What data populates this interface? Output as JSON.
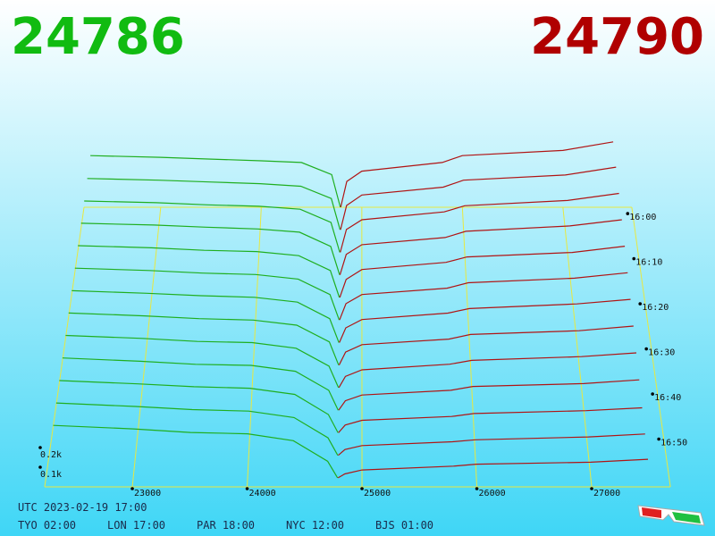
{
  "chart_data": {
    "type": "depth3d",
    "best_bid": "24786",
    "best_ask": "24790",
    "bid_color": "#1fae1f",
    "ask_color": "#b01414",
    "xlim": [
      22237,
      27685
    ],
    "xticks": [
      23000,
      24000,
      25000,
      26000,
      27000
    ],
    "zlim": [
      958,
      1020
    ],
    "zticks": [
      {
        "value": 960,
        "label": "16:00"
      },
      {
        "value": 970,
        "label": "16:10"
      },
      {
        "value": 980,
        "label": "16:20"
      },
      {
        "value": 990,
        "label": "16:30"
      },
      {
        "value": 1000,
        "label": "16:40"
      },
      {
        "value": 1010,
        "label": "16:50"
      }
    ],
    "vticks": [
      {
        "value": 100,
        "label": "0.1k"
      },
      {
        "value": 200,
        "label": "0.2k"
      }
    ],
    "bid_prices": [
      22300,
      23000,
      23500,
      24000,
      24400,
      24700,
      24786
    ],
    "ask_prices": [
      24790,
      24850,
      25000,
      25800,
      26000,
      27000,
      27500
    ],
    "rows": [
      {
        "time": 958,
        "bids": [
          300,
          290,
          280,
          270,
          260,
          190,
          0
        ],
        "asks": [
          0,
          150,
          210,
          260,
          300,
          330,
          380
        ]
      },
      {
        "time": 963,
        "bids": [
          295,
          285,
          275,
          265,
          250,
          180,
          0
        ],
        "asks": [
          0,
          140,
          200,
          245,
          285,
          315,
          360
        ]
      },
      {
        "time": 968,
        "bids": [
          292,
          282,
          270,
          262,
          245,
          170,
          0
        ],
        "asks": [
          0,
          130,
          185,
          230,
          265,
          295,
          335
        ]
      },
      {
        "time": 973,
        "bids": [
          290,
          280,
          268,
          258,
          240,
          160,
          0
        ],
        "asks": [
          0,
          115,
          170,
          210,
          245,
          275,
          310
        ]
      },
      {
        "time": 978,
        "bids": [
          288,
          276,
          262,
          255,
          232,
          150,
          0
        ],
        "asks": [
          0,
          100,
          155,
          195,
          225,
          250,
          285
        ]
      },
      {
        "time": 983,
        "bids": [
          285,
          272,
          258,
          250,
          225,
          140,
          0
        ],
        "asks": [
          0,
          90,
          140,
          175,
          205,
          230,
          260
        ]
      },
      {
        "time": 988,
        "bids": [
          282,
          268,
          255,
          246,
          220,
          130,
          0
        ],
        "asks": [
          0,
          80,
          125,
          160,
          185,
          210,
          235
        ]
      },
      {
        "time": 993,
        "bids": [
          280,
          265,
          250,
          242,
          215,
          125,
          0
        ],
        "asks": [
          0,
          70,
          110,
          140,
          165,
          185,
          210
        ]
      },
      {
        "time": 998,
        "bids": [
          278,
          262,
          246,
          240,
          210,
          115,
          0
        ],
        "asks": [
          0,
          60,
          95,
          125,
          145,
          165,
          185
        ]
      },
      {
        "time": 1003,
        "bids": [
          275,
          258,
          242,
          236,
          205,
          105,
          0
        ],
        "asks": [
          0,
          50,
          80,
          105,
          125,
          140,
          160
        ]
      },
      {
        "time": 1008,
        "bids": [
          272,
          255,
          240,
          232,
          200,
          95,
          0
        ],
        "asks": [
          0,
          40,
          65,
          85,
          100,
          115,
          130
        ]
      },
      {
        "time": 1013,
        "bids": [
          270,
          252,
          236,
          228,
          195,
          90,
          0
        ],
        "asks": [
          0,
          30,
          50,
          70,
          80,
          95,
          110
        ]
      },
      {
        "time": 1018,
        "bids": [
          268,
          250,
          232,
          225,
          190,
          85,
          0
        ],
        "asks": [
          0,
          20,
          40,
          60,
          70,
          80,
          95
        ]
      }
    ]
  },
  "clocks": {
    "utc": "UTC 2023-02-19 17:00",
    "zones": [
      "TYO 02:00",
      "LON 17:00",
      "PAR 18:00",
      "NYC 12:00",
      "BJS 01:00"
    ]
  }
}
